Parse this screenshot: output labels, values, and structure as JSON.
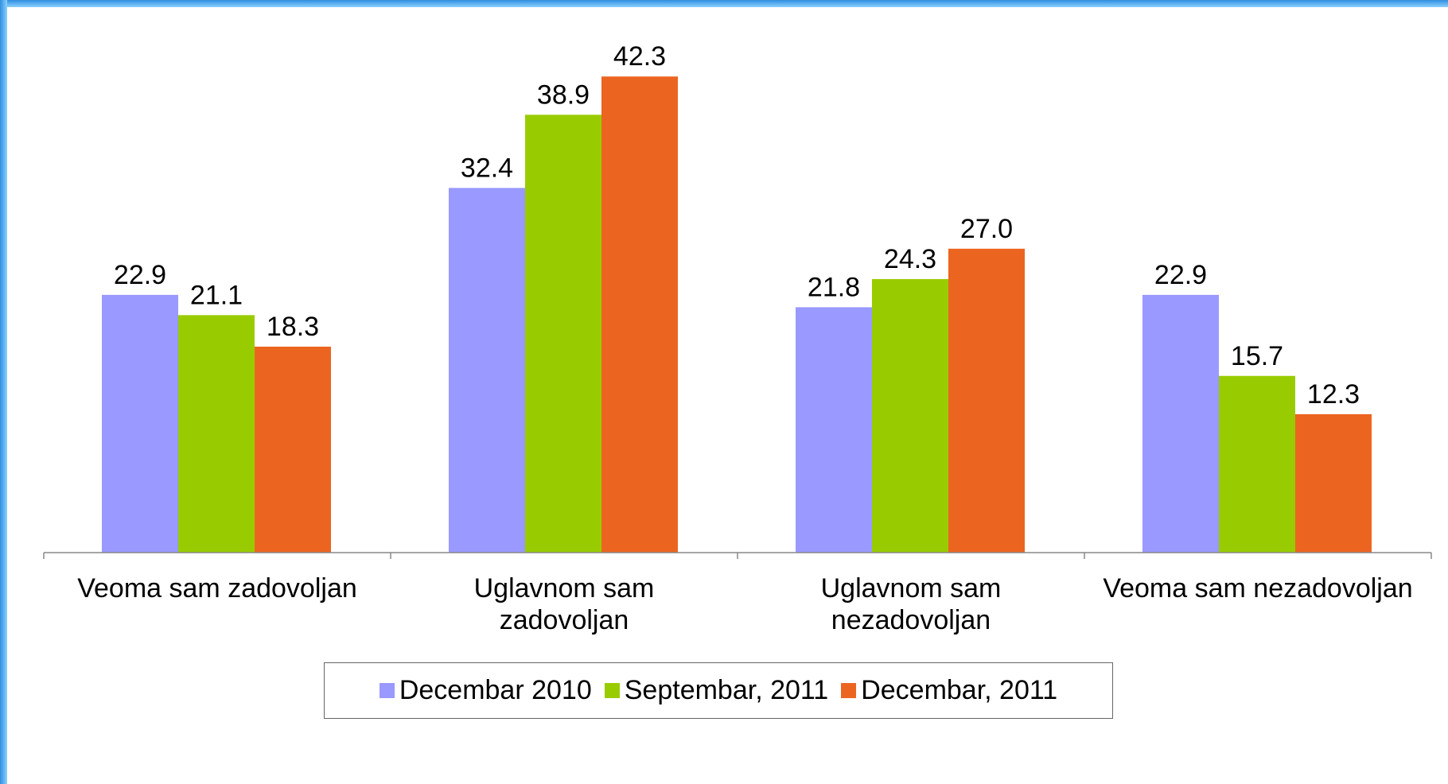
{
  "chart_data": {
    "type": "bar",
    "categories": [
      "Veoma sam zadovoljan",
      "Uglavnom sam\nzadovoljan",
      "Uglavnom sam\nnezadovoljan",
      "Veoma sam nezadovoljan"
    ],
    "series": [
      {
        "name": "Decembar 2010",
        "color": "#9999ff",
        "values": [
          22.9,
          32.4,
          21.8,
          22.9
        ],
        "value_labels": [
          "22.9",
          "32.4",
          "21.8",
          "22.9"
        ]
      },
      {
        "name": "Septembar, 2011",
        "color": "#99cc00",
        "values": [
          21.1,
          38.9,
          24.3,
          15.7
        ],
        "value_labels": [
          "21.1",
          "38.9",
          "24.3",
          "15.7"
        ]
      },
      {
        "name": "Decembar, 2011",
        "color": "#ec6520",
        "values": [
          18.3,
          42.3,
          27.0,
          12.3
        ],
        "value_labels": [
          "18.3",
          "42.3",
          "27.0",
          "12.3"
        ]
      }
    ],
    "ylim": [
      0,
      45
    ],
    "grid": false,
    "legend": "bottom"
  }
}
